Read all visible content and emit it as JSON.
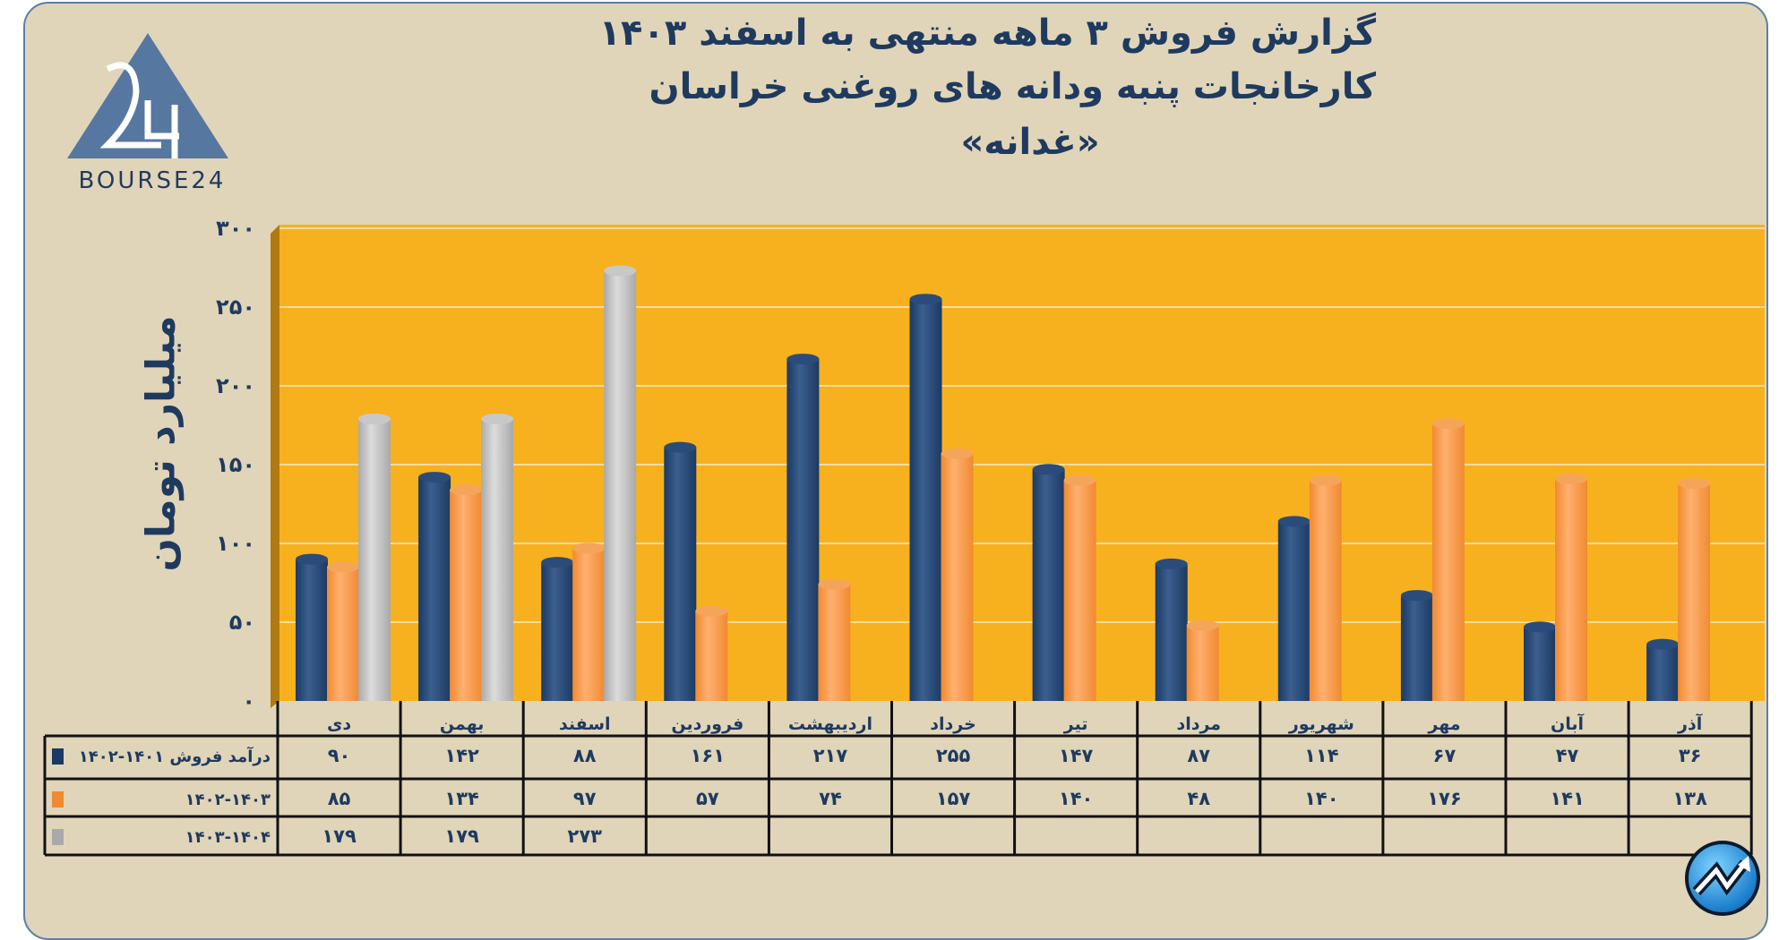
{
  "chart_data": {
    "type": "bar",
    "title": "گزارش  فروش ۳ ماهه منتهی به اسفند ۱۴۰۳",
    "subtitle": "کارخانجات پنبه ودانه های روغنی خراسان",
    "symbol": "«غدانه»",
    "ylabel": "میلیارد تومان",
    "ylim": [
      0,
      300
    ],
    "yticks": [
      0,
      50,
      100,
      150,
      200,
      250,
      300
    ],
    "ytick_labels": [
      "۰",
      "۵۰",
      "۱۰۰",
      "۱۵۰",
      "۲۰۰",
      "۲۵۰",
      "۳۰۰"
    ],
    "grid": true,
    "categories": [
      "دی",
      "بهمن",
      "اسفند",
      "فروردین",
      "اردیبهشت",
      "خرداد",
      "تیر",
      "مرداد",
      "شهریور",
      "مهر",
      "آبان",
      "آذر"
    ],
    "series": [
      {
        "name": "درآمد فروش ۱۴۰۱-۱۴۰۲",
        "color": "#1b3a63",
        "values": [
          90,
          142,
          88,
          161,
          217,
          255,
          147,
          87,
          114,
          67,
          47,
          36
        ],
        "labels": [
          "۹۰",
          "۱۴۲",
          "۸۸",
          "۱۶۱",
          "۲۱۷",
          "۲۵۵",
          "۱۴۷",
          "۸۷",
          "۱۱۴",
          "۶۷",
          "۴۷",
          "۳۶"
        ]
      },
      {
        "name": "۱۴۰۲-۱۴۰۳",
        "color": "#f08a30",
        "values": [
          85,
          134,
          97,
          57,
          74,
          157,
          140,
          48,
          140,
          176,
          141,
          138
        ],
        "labels": [
          "۸۵",
          "۱۳۴",
          "۹۷",
          "۵۷",
          "۷۴",
          "۱۵۷",
          "۱۴۰",
          "۴۸",
          "۱۴۰",
          "۱۷۶",
          "۱۴۱",
          "۱۳۸"
        ]
      },
      {
        "name": "۱۴۰۳-۱۴۰۴",
        "color": "#a9a9a9",
        "values": [
          179,
          179,
          273,
          null,
          null,
          null,
          null,
          null,
          null,
          null,
          null,
          null
        ],
        "labels": [
          "۱۷۹",
          "۱۷۹",
          "۲۷۳",
          "",
          "",
          "",
          "",
          "",
          "",
          "",
          "",
          ""
        ]
      }
    ],
    "plot_background": "#f7b11e",
    "legend": "data-table-bottom"
  },
  "logo": {
    "text": "BOURSE24",
    "mark": "24",
    "color": "#5677a0"
  }
}
